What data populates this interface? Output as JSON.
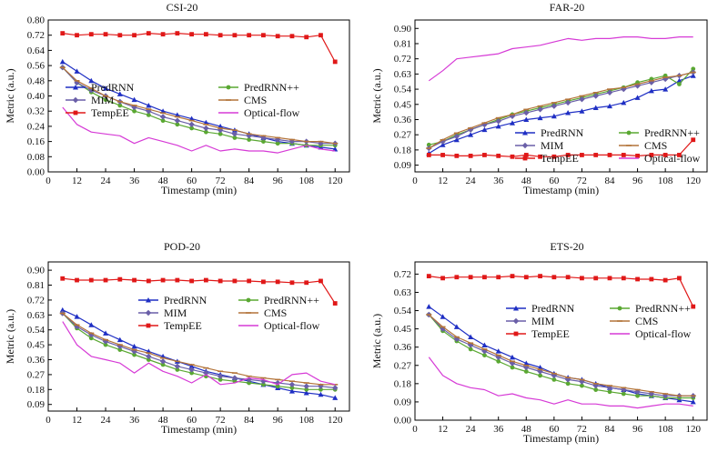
{
  "axis_labels": {
    "x_label": "Timestamp (min)",
    "y_label": "Metric (a.u.)"
  },
  "series_styles": {
    "PredRNN": {
      "color": "#1f2fc4",
      "marker": "triangle"
    },
    "PredRNN++": {
      "color": "#5aa832",
      "marker": "circle"
    },
    "MIM": {
      "color": "#6a5fa8",
      "marker": "diamond"
    },
    "CMS": {
      "color": "#b3743a",
      "marker": "dash"
    },
    "TempEE": {
      "color": "#e01818",
      "marker": "square"
    },
    "Optical-flow": {
      "color": "#d63ad6",
      "marker": "none"
    }
  },
  "chart_data": [
    {
      "id": "csi",
      "type": "line",
      "title": "CSI-20",
      "xlabel": "Timestamp (min)",
      "ylabel": "Metric (a.u.)",
      "xlim": [
        0,
        126
      ],
      "ylim": [
        0.0,
        0.8
      ],
      "xticks": [
        0,
        12,
        24,
        36,
        48,
        60,
        72,
        84,
        96,
        108,
        120
      ],
      "yticks": [
        "0.00",
        "0.08",
        "0.16",
        "0.24",
        "0.32",
        "0.40",
        "0.48",
        "0.56",
        "0.64",
        "0.72",
        "0.80"
      ],
      "legend": "center",
      "x": [
        6,
        12,
        18,
        24,
        30,
        36,
        42,
        48,
        54,
        60,
        66,
        72,
        78,
        84,
        90,
        96,
        102,
        108,
        114,
        120
      ],
      "series": [
        {
          "name": "PredRNN",
          "values": [
            0.58,
            0.53,
            0.48,
            0.44,
            0.41,
            0.38,
            0.35,
            0.32,
            0.3,
            0.28,
            0.26,
            0.24,
            0.22,
            0.2,
            0.18,
            0.16,
            0.15,
            0.14,
            0.13,
            0.12
          ]
        },
        {
          "name": "PredRNN++",
          "values": [
            0.55,
            0.47,
            0.42,
            0.38,
            0.35,
            0.32,
            0.3,
            0.27,
            0.25,
            0.23,
            0.21,
            0.2,
            0.18,
            0.17,
            0.16,
            0.15,
            0.15,
            0.14,
            0.14,
            0.14
          ]
        },
        {
          "name": "MIM",
          "values": [
            0.55,
            0.47,
            0.43,
            0.4,
            0.37,
            0.34,
            0.32,
            0.29,
            0.27,
            0.25,
            0.23,
            0.22,
            0.2,
            0.19,
            0.18,
            0.17,
            0.16,
            0.16,
            0.15,
            0.15
          ]
        },
        {
          "name": "CMS",
          "values": [
            0.55,
            0.48,
            0.44,
            0.4,
            0.37,
            0.35,
            0.33,
            0.31,
            0.29,
            0.27,
            0.25,
            0.23,
            0.22,
            0.2,
            0.19,
            0.18,
            0.17,
            0.16,
            0.16,
            0.15
          ]
        },
        {
          "name": "TempEE",
          "values": [
            0.73,
            0.72,
            0.725,
            0.725,
            0.72,
            0.72,
            0.73,
            0.725,
            0.73,
            0.725,
            0.725,
            0.72,
            0.72,
            0.72,
            0.72,
            0.715,
            0.715,
            0.71,
            0.72,
            0.58
          ]
        },
        {
          "name": "Optical-flow",
          "values": [
            0.34,
            0.25,
            0.21,
            0.2,
            0.19,
            0.15,
            0.18,
            0.16,
            0.14,
            0.11,
            0.14,
            0.11,
            0.12,
            0.11,
            0.11,
            0.1,
            0.12,
            0.14,
            0.12,
            0.11
          ]
        }
      ]
    },
    {
      "id": "far",
      "type": "line",
      "title": "FAR-20",
      "xlabel": "Timestamp (min)",
      "ylabel": "Metric (a.u.)",
      "xlim": [
        0,
        126
      ],
      "ylim": [
        0.05,
        0.95
      ],
      "xticks": [
        0,
        12,
        24,
        36,
        48,
        60,
        72,
        84,
        96,
        108,
        120
      ],
      "yticks": [
        "0.09",
        "0.18",
        "0.27",
        "0.36",
        "0.45",
        "0.54",
        "0.63",
        "0.72",
        "0.81",
        "0.90"
      ],
      "legend": "bottom-left",
      "x": [
        6,
        12,
        18,
        24,
        30,
        36,
        42,
        48,
        54,
        60,
        66,
        72,
        78,
        84,
        90,
        96,
        102,
        108,
        114,
        120
      ],
      "series": [
        {
          "name": "PredRNN",
          "values": [
            0.16,
            0.21,
            0.24,
            0.27,
            0.3,
            0.32,
            0.34,
            0.36,
            0.37,
            0.38,
            0.4,
            0.41,
            0.43,
            0.44,
            0.46,
            0.49,
            0.53,
            0.54,
            0.59,
            0.62
          ]
        },
        {
          "name": "PredRNN++",
          "values": [
            0.21,
            0.23,
            0.27,
            0.3,
            0.33,
            0.36,
            0.39,
            0.41,
            0.43,
            0.45,
            0.47,
            0.49,
            0.51,
            0.53,
            0.55,
            0.58,
            0.6,
            0.62,
            0.57,
            0.66
          ]
        },
        {
          "name": "MIM",
          "values": [
            0.19,
            0.23,
            0.26,
            0.3,
            0.33,
            0.35,
            0.38,
            0.4,
            0.42,
            0.44,
            0.46,
            0.48,
            0.5,
            0.52,
            0.54,
            0.56,
            0.58,
            0.6,
            0.62,
            0.64
          ]
        },
        {
          "name": "CMS",
          "values": [
            0.19,
            0.24,
            0.28,
            0.31,
            0.34,
            0.37,
            0.39,
            0.42,
            0.44,
            0.46,
            0.48,
            0.5,
            0.52,
            0.54,
            0.55,
            0.57,
            0.59,
            0.61,
            0.62,
            0.64
          ]
        },
        {
          "name": "TempEE",
          "values": [
            0.15,
            0.15,
            0.145,
            0.145,
            0.15,
            0.145,
            0.14,
            0.15,
            0.14,
            0.14,
            0.15,
            0.15,
            0.15,
            0.15,
            0.15,
            0.145,
            0.15,
            0.15,
            0.15,
            0.24
          ]
        },
        {
          "name": "Optical-flow",
          "values": [
            0.59,
            0.65,
            0.72,
            0.73,
            0.74,
            0.75,
            0.78,
            0.79,
            0.8,
            0.82,
            0.84,
            0.83,
            0.84,
            0.84,
            0.85,
            0.85,
            0.84,
            0.84,
            0.85,
            0.85
          ]
        }
      ]
    },
    {
      "id": "pod",
      "type": "line",
      "title": "POD-20",
      "xlabel": "Timestamp (min)",
      "ylabel": "Metric (a.u.)",
      "xlim": [
        0,
        126
      ],
      "ylim": [
        0.05,
        0.95
      ],
      "xticks": [
        0,
        12,
        24,
        36,
        48,
        60,
        72,
        84,
        96,
        108,
        120
      ],
      "yticks": [
        "0.09",
        "0.18",
        "0.27",
        "0.36",
        "0.45",
        "0.54",
        "0.63",
        "0.72",
        "0.81",
        "0.90"
      ],
      "legend": "center",
      "x": [
        6,
        12,
        18,
        24,
        30,
        36,
        42,
        48,
        54,
        60,
        66,
        72,
        78,
        84,
        90,
        96,
        102,
        108,
        114,
        120
      ],
      "series": [
        {
          "name": "PredRNN",
          "values": [
            0.66,
            0.62,
            0.57,
            0.52,
            0.48,
            0.44,
            0.41,
            0.38,
            0.35,
            0.32,
            0.29,
            0.27,
            0.25,
            0.23,
            0.21,
            0.19,
            0.17,
            0.16,
            0.15,
            0.13
          ]
        },
        {
          "name": "PredRNN++",
          "values": [
            0.64,
            0.55,
            0.49,
            0.45,
            0.42,
            0.39,
            0.36,
            0.33,
            0.3,
            0.28,
            0.26,
            0.24,
            0.23,
            0.22,
            0.21,
            0.2,
            0.19,
            0.18,
            0.18,
            0.18
          ]
        },
        {
          "name": "MIM",
          "values": [
            0.64,
            0.56,
            0.51,
            0.47,
            0.44,
            0.41,
            0.38,
            0.35,
            0.32,
            0.3,
            0.28,
            0.26,
            0.25,
            0.24,
            0.23,
            0.22,
            0.21,
            0.2,
            0.2,
            0.19
          ]
        },
        {
          "name": "CMS",
          "values": [
            0.64,
            0.57,
            0.52,
            0.48,
            0.45,
            0.42,
            0.4,
            0.37,
            0.35,
            0.33,
            0.31,
            0.29,
            0.28,
            0.26,
            0.25,
            0.24,
            0.23,
            0.22,
            0.21,
            0.21
          ]
        },
        {
          "name": "TempEE",
          "values": [
            0.85,
            0.84,
            0.84,
            0.84,
            0.845,
            0.84,
            0.835,
            0.84,
            0.84,
            0.835,
            0.84,
            0.835,
            0.835,
            0.835,
            0.83,
            0.83,
            0.825,
            0.825,
            0.835,
            0.7
          ]
        },
        {
          "name": "Optical-flow",
          "values": [
            0.59,
            0.45,
            0.38,
            0.36,
            0.34,
            0.28,
            0.34,
            0.29,
            0.26,
            0.22,
            0.27,
            0.21,
            0.22,
            0.25,
            0.24,
            0.21,
            0.27,
            0.28,
            0.23,
            0.21
          ]
        }
      ]
    },
    {
      "id": "ets",
      "type": "line",
      "title": "ETS-20",
      "xlabel": "Timestamp (min)",
      "ylabel": "Metric (a.u.)",
      "xlim": [
        0,
        126
      ],
      "ylim": [
        0.0,
        0.78
      ],
      "xticks": [
        0,
        12,
        24,
        36,
        48,
        60,
        72,
        84,
        96,
        108,
        120
      ],
      "yticks": [
        "0.00",
        "0.09",
        "0.18",
        "0.27",
        "0.36",
        "0.45",
        "0.54",
        "0.63",
        "0.72"
      ],
      "legend": "center",
      "x": [
        6,
        12,
        18,
        24,
        30,
        36,
        42,
        48,
        54,
        60,
        66,
        72,
        78,
        84,
        90,
        96,
        102,
        108,
        114,
        120
      ],
      "series": [
        {
          "name": "PredRNN",
          "values": [
            0.56,
            0.51,
            0.46,
            0.41,
            0.37,
            0.34,
            0.31,
            0.28,
            0.26,
            0.23,
            0.21,
            0.2,
            0.18,
            0.16,
            0.15,
            0.13,
            0.12,
            0.11,
            0.1,
            0.09
          ]
        },
        {
          "name": "PredRNN++",
          "values": [
            0.52,
            0.44,
            0.39,
            0.35,
            0.32,
            0.29,
            0.26,
            0.24,
            0.22,
            0.2,
            0.18,
            0.17,
            0.15,
            0.14,
            0.13,
            0.12,
            0.12,
            0.11,
            0.11,
            0.11
          ]
        },
        {
          "name": "MIM",
          "values": [
            0.52,
            0.45,
            0.4,
            0.37,
            0.34,
            0.31,
            0.28,
            0.26,
            0.24,
            0.22,
            0.2,
            0.19,
            0.17,
            0.16,
            0.15,
            0.14,
            0.13,
            0.12,
            0.12,
            0.12
          ]
        },
        {
          "name": "CMS",
          "values": [
            0.52,
            0.46,
            0.41,
            0.38,
            0.35,
            0.32,
            0.29,
            0.27,
            0.25,
            0.23,
            0.21,
            0.2,
            0.18,
            0.17,
            0.16,
            0.15,
            0.14,
            0.13,
            0.12,
            0.12
          ]
        },
        {
          "name": "TempEE",
          "values": [
            0.71,
            0.7,
            0.705,
            0.705,
            0.705,
            0.705,
            0.71,
            0.705,
            0.71,
            0.705,
            0.705,
            0.7,
            0.7,
            0.7,
            0.7,
            0.695,
            0.695,
            0.69,
            0.7,
            0.56
          ]
        },
        {
          "name": "Optical-flow",
          "values": [
            0.31,
            0.22,
            0.18,
            0.16,
            0.15,
            0.12,
            0.13,
            0.11,
            0.1,
            0.08,
            0.1,
            0.08,
            0.08,
            0.07,
            0.07,
            0.06,
            0.07,
            0.08,
            0.08,
            0.07
          ]
        }
      ]
    }
  ]
}
